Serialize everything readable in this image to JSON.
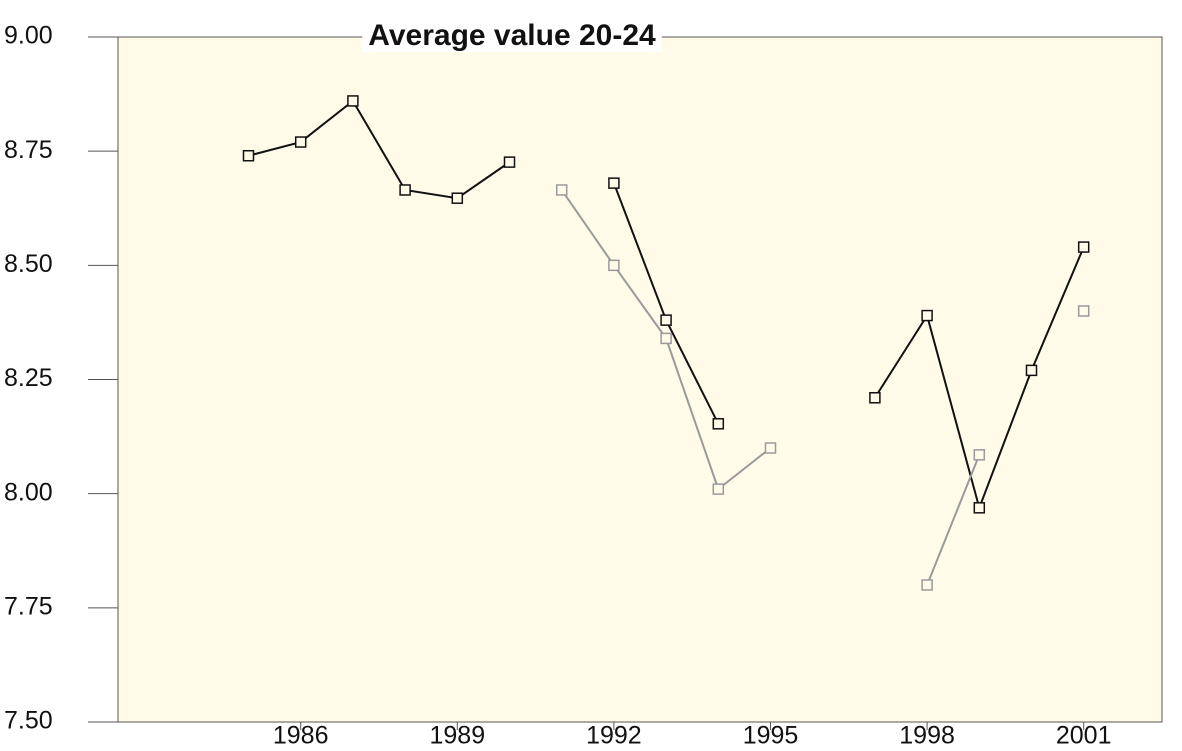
{
  "chart_data": {
    "type": "line",
    "title": "Average value 20-24",
    "x": [
      1985,
      1986,
      1987,
      1988,
      1989,
      1990,
      1991,
      1992,
      1993,
      1994,
      1995,
      1996,
      1997,
      1998,
      1999,
      2000,
      2001
    ],
    "series": [
      {
        "color": "#111111",
        "values": [
          8.74,
          8.77,
          8.86,
          8.665,
          8.647,
          8.726,
          null,
          8.68,
          8.38,
          8.153,
          null,
          null,
          8.21,
          8.39,
          7.969,
          8.27,
          8.54
        ]
      },
      {
        "color": "#9a9a9a",
        "values": [
          null,
          null,
          null,
          null,
          null,
          null,
          8.665,
          8.5,
          8.34,
          8.01,
          8.1,
          null,
          null,
          7.8,
          8.085,
          null,
          8.4
        ]
      }
    ],
    "xlim": [
      1982.5,
      2002.5
    ],
    "xticks": [
      1986,
      1989,
      1992,
      1995,
      1998,
      2001
    ],
    "ylim": [
      7.5,
      9.0
    ],
    "yticks": [
      {
        "value": 7.5,
        "label": "7.50"
      },
      {
        "value": 7.75,
        "label": "7.75"
      },
      {
        "value": 8.0,
        "label": "8.00"
      },
      {
        "value": 8.25,
        "label": "8.25"
      },
      {
        "value": 8.5,
        "label": "8.50"
      },
      {
        "value": 8.75,
        "label": "8.75"
      },
      {
        "value": 9.0,
        "label": "9.00"
      }
    ],
    "background": "#fffbe8"
  }
}
